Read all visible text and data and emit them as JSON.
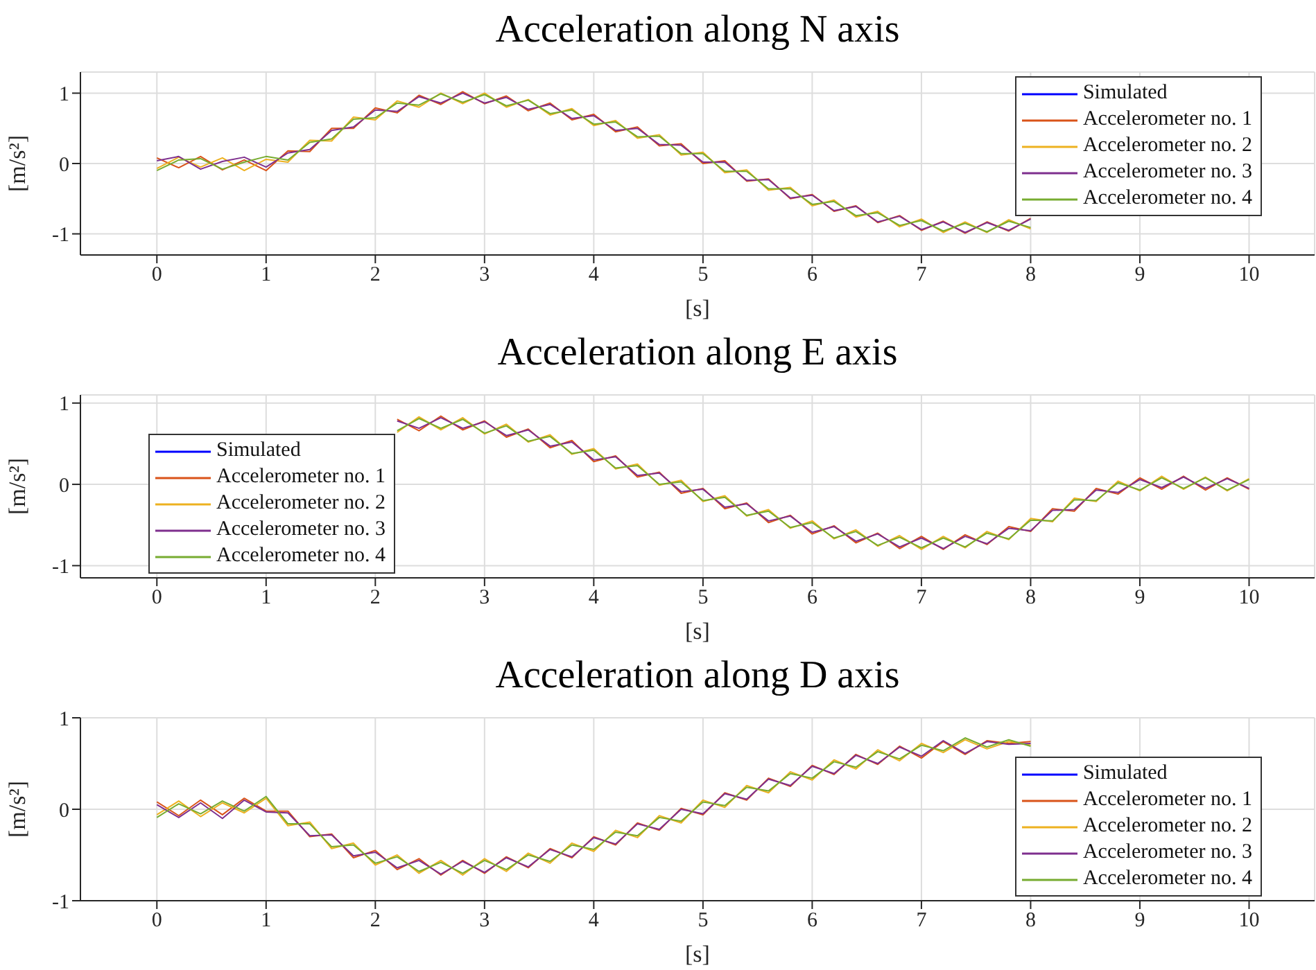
{
  "chart_data": [
    {
      "type": "line",
      "title": "Acceleration along N axis",
      "xlabel": "[s]",
      "ylabel": "[m/s²]",
      "grid": true,
      "legend": "top right",
      "xlim": [
        -0.7,
        10.6
      ],
      "xticks": [
        0,
        1,
        2,
        3,
        4,
        5,
        6,
        7,
        8,
        9,
        10
      ],
      "ylim": [
        -1.3,
        1.3
      ],
      "yticks": [
        -1,
        0,
        1
      ],
      "series": [
        {
          "name": "Simulated",
          "color": "#0000ff"
        },
        {
          "name": "Accelerometer no. 1",
          "color": "#d95319",
          "x": [
            0,
            0.2,
            0.4,
            0.6,
            0.8,
            1,
            1.2,
            1.4,
            1.6,
            1.8,
            2,
            2.2,
            2.4,
            2.6,
            2.8,
            3,
            3.2,
            3.4,
            3.6,
            3.8,
            4,
            4.2,
            4.4,
            4.6,
            4.8,
            5,
            5.2,
            5.4,
            5.6,
            5.8,
            6,
            6.2,
            6.4,
            6.6,
            6.8,
            7,
            7.2,
            7.4,
            7.6,
            7.8,
            8
          ],
          "values": [
            0.08,
            -0.06,
            0.1,
            -0.09,
            0.05,
            -0.1,
            0.18,
            0.17,
            0.5,
            0.5,
            0.79,
            0.72,
            0.97,
            0.84,
            1.02,
            0.85,
            0.96,
            0.75,
            0.86,
            0.62,
            0.7,
            0.45,
            0.52,
            0.25,
            0.28,
            0,
            0.04,
            -0.25,
            -0.22,
            -0.5,
            -0.44,
            -0.68,
            -0.6,
            -0.84,
            -0.74,
            -0.95,
            -0.82,
            -0.99,
            -0.83,
            -0.96,
            -0.78
          ]
        },
        {
          "name": "Accelerometer no. 2",
          "color": "#edb120",
          "x": [
            0,
            0.2,
            0.4,
            0.6,
            0.8,
            1,
            1.2,
            1.4,
            1.6,
            1.8,
            2,
            2.2,
            2.4,
            2.6,
            2.8,
            3,
            3.2,
            3.4,
            3.6,
            3.8,
            4,
            4.2,
            4.4,
            4.6,
            4.8,
            5,
            5.2,
            5.4,
            5.6,
            5.8,
            6,
            6.2,
            6.4,
            6.6,
            6.8,
            7,
            7.2,
            7.4,
            7.6,
            7.8,
            8
          ],
          "values": [
            -0.07,
            0.09,
            -0.05,
            0.08,
            -0.1,
            0.06,
            0.02,
            0.33,
            0.32,
            0.66,
            0.62,
            0.89,
            0.8,
            1.0,
            0.85,
            1.0,
            0.8,
            0.91,
            0.69,
            0.78,
            0.54,
            0.61,
            0.36,
            0.41,
            0.12,
            0.16,
            -0.13,
            -0.09,
            -0.38,
            -0.34,
            -0.6,
            -0.52,
            -0.76,
            -0.68,
            -0.9,
            -0.79,
            -0.98,
            -0.83,
            -0.98,
            -0.8,
            -0.93
          ]
        },
        {
          "name": "Accelerometer no. 3",
          "color": "#7e2f8e",
          "x": [
            0,
            0.2,
            0.4,
            0.6,
            0.8,
            1,
            1.2,
            1.4,
            1.6,
            1.8,
            2,
            2.2,
            2.4,
            2.6,
            2.8,
            3,
            3.2,
            3.4,
            3.6,
            3.8,
            4,
            4.2,
            4.4,
            4.6,
            4.8,
            5,
            5.2,
            5.4,
            5.6,
            5.8,
            6,
            6.2,
            6.4,
            6.6,
            6.8,
            7,
            7.2,
            7.4,
            7.6,
            7.8,
            8
          ],
          "values": [
            0.04,
            0.1,
            -0.08,
            0.03,
            0.09,
            -0.05,
            0.15,
            0.2,
            0.47,
            0.52,
            0.76,
            0.74,
            0.95,
            0.86,
            1.0,
            0.86,
            0.94,
            0.77,
            0.84,
            0.64,
            0.68,
            0.47,
            0.5,
            0.27,
            0.26,
            0.02,
            0.02,
            -0.24,
            -0.23,
            -0.49,
            -0.45,
            -0.67,
            -0.61,
            -0.83,
            -0.75,
            -0.94,
            -0.83,
            -0.98,
            -0.84,
            -0.95,
            -0.79
          ]
        },
        {
          "name": "Accelerometer no. 4",
          "color": "#77ac30",
          "x": [
            0,
            0.2,
            0.4,
            0.6,
            0.8,
            1,
            1.2,
            1.4,
            1.6,
            1.8,
            2,
            2.2,
            2.4,
            2.6,
            2.8,
            3,
            3.2,
            3.4,
            3.6,
            3.8,
            4,
            4.2,
            4.4,
            4.6,
            4.8,
            5,
            5.2,
            5.4,
            5.6,
            5.8,
            6,
            6.2,
            6.4,
            6.6,
            6.8,
            7,
            7.2,
            7.4,
            7.6,
            7.8,
            8
          ],
          "values": [
            -0.1,
            0.05,
            0.07,
            -0.08,
            0.02,
            0.1,
            0.05,
            0.3,
            0.35,
            0.63,
            0.65,
            0.86,
            0.83,
            0.99,
            0.87,
            0.98,
            0.82,
            0.9,
            0.71,
            0.76,
            0.56,
            0.59,
            0.38,
            0.39,
            0.14,
            0.14,
            -0.11,
            -0.11,
            -0.36,
            -0.36,
            -0.58,
            -0.54,
            -0.74,
            -0.7,
            -0.88,
            -0.81,
            -0.96,
            -0.85,
            -0.97,
            -0.82,
            -0.91
          ]
        }
      ]
    },
    {
      "type": "line",
      "title": "Acceleration along E axis",
      "xlabel": "[s]",
      "ylabel": "[m/s²]",
      "grid": true,
      "legend": "bottom left",
      "xlim": [
        -0.7,
        10.6
      ],
      "xticks": [
        0,
        1,
        2,
        3,
        4,
        5,
        6,
        7,
        8,
        9,
        10
      ],
      "ylim": [
        -1.15,
        1.1
      ],
      "yticks": [
        -1,
        0,
        1
      ],
      "series": [
        {
          "name": "Simulated",
          "color": "#0000ff"
        },
        {
          "name": "Accelerometer no. 1",
          "color": "#d95319",
          "x": [
            2.2,
            2.4,
            2.6,
            2.8,
            3,
            3.2,
            3.4,
            3.6,
            3.8,
            4,
            4.2,
            4.4,
            4.6,
            4.8,
            5,
            5.2,
            5.4,
            5.6,
            5.8,
            6,
            6.2,
            6.4,
            6.6,
            6.8,
            7,
            7.2,
            7.4,
            7.6,
            7.8,
            8,
            8.2,
            8.4,
            8.6,
            8.8,
            9,
            9.2,
            9.4,
            9.6,
            9.8,
            10
          ],
          "values": [
            0.8,
            0.66,
            0.84,
            0.67,
            0.78,
            0.58,
            0.68,
            0.45,
            0.54,
            0.28,
            0.35,
            0.09,
            0.15,
            -0.11,
            -0.05,
            -0.3,
            -0.23,
            -0.47,
            -0.38,
            -0.61,
            -0.51,
            -0.72,
            -0.6,
            -0.79,
            -0.64,
            -0.8,
            -0.62,
            -0.74,
            -0.52,
            -0.58,
            -0.3,
            -0.33,
            -0.05,
            -0.12,
            0.08,
            -0.06,
            0.1,
            -0.07,
            0.08,
            -0.06
          ]
        },
        {
          "name": "Accelerometer no. 2",
          "color": "#edb120",
          "x": [
            2.2,
            2.4,
            2.6,
            2.8,
            3,
            3.2,
            3.4,
            3.6,
            3.8,
            4,
            4.2,
            4.4,
            4.6,
            4.8,
            5,
            5.2,
            5.4,
            5.6,
            5.8,
            6,
            6.2,
            6.4,
            6.6,
            6.8,
            7,
            7.2,
            7.4,
            7.6,
            7.8,
            8,
            8.2,
            8.4,
            8.6,
            8.8,
            9,
            9.2,
            9.4,
            9.6,
            9.8,
            10
          ],
          "values": [
            0.64,
            0.83,
            0.67,
            0.82,
            0.62,
            0.74,
            0.52,
            0.61,
            0.37,
            0.44,
            0.19,
            0.25,
            -0.01,
            0.05,
            -0.21,
            -0.14,
            -0.39,
            -0.31,
            -0.54,
            -0.45,
            -0.67,
            -0.56,
            -0.76,
            -0.63,
            -0.8,
            -0.64,
            -0.78,
            -0.58,
            -0.68,
            -0.42,
            -0.46,
            -0.17,
            -0.21,
            0.04,
            -0.08,
            0.1,
            -0.06,
            0.09,
            -0.08,
            0.07
          ]
        },
        {
          "name": "Accelerometer no. 3",
          "color": "#7e2f8e",
          "x": [
            2.2,
            2.4,
            2.6,
            2.8,
            3,
            3.2,
            3.4,
            3.6,
            3.8,
            4,
            4.2,
            4.4,
            4.6,
            4.8,
            5,
            5.2,
            5.4,
            5.6,
            5.8,
            6,
            6.2,
            6.4,
            6.6,
            6.8,
            7,
            7.2,
            7.4,
            7.6,
            7.8,
            8,
            8.2,
            8.4,
            8.6,
            8.8,
            9,
            9.2,
            9.4,
            9.6,
            9.8,
            10
          ],
          "values": [
            0.78,
            0.69,
            0.82,
            0.69,
            0.77,
            0.6,
            0.67,
            0.47,
            0.52,
            0.3,
            0.34,
            0.11,
            0.14,
            -0.09,
            -0.06,
            -0.28,
            -0.24,
            -0.45,
            -0.39,
            -0.59,
            -0.52,
            -0.7,
            -0.61,
            -0.77,
            -0.66,
            -0.79,
            -0.64,
            -0.73,
            -0.54,
            -0.57,
            -0.32,
            -0.31,
            -0.07,
            -0.1,
            0.06,
            -0.04,
            0.09,
            -0.05,
            0.07,
            -0.05
          ]
        },
        {
          "name": "Accelerometer no. 4",
          "color": "#77ac30",
          "x": [
            2.2,
            2.4,
            2.6,
            2.8,
            3,
            3.2,
            3.4,
            3.6,
            3.8,
            4,
            4.2,
            4.4,
            4.6,
            4.8,
            5,
            5.2,
            5.4,
            5.6,
            5.8,
            6,
            6.2,
            6.4,
            6.6,
            6.8,
            7,
            7.2,
            7.4,
            7.6,
            7.8,
            8,
            8.2,
            8.4,
            8.6,
            8.8,
            9,
            9.2,
            9.4,
            9.6,
            9.8,
            10
          ],
          "values": [
            0.66,
            0.81,
            0.69,
            0.8,
            0.63,
            0.72,
            0.53,
            0.59,
            0.38,
            0.42,
            0.2,
            0.23,
            0,
            0.03,
            -0.2,
            -0.16,
            -0.38,
            -0.33,
            -0.53,
            -0.47,
            -0.66,
            -0.58,
            -0.75,
            -0.65,
            -0.78,
            -0.66,
            -0.77,
            -0.6,
            -0.67,
            -0.44,
            -0.45,
            -0.19,
            -0.2,
            0.02,
            -0.07,
            0.08,
            -0.05,
            0.08,
            -0.07,
            0.06
          ]
        }
      ]
    },
    {
      "type": "line",
      "title": "Acceleration along D axis",
      "xlabel": "[s]",
      "ylabel": "[m/s²]",
      "grid": true,
      "legend": "bottom right",
      "xlim": [
        -0.7,
        10.6
      ],
      "xticks": [
        0,
        1,
        2,
        3,
        4,
        5,
        6,
        7,
        8,
        9,
        10
      ],
      "ylim": [
        -1,
        1
      ],
      "yticks": [
        -1,
        0,
        1
      ],
      "series": [
        {
          "name": "Simulated",
          "color": "#0000ff"
        },
        {
          "name": "Accelerometer no. 1",
          "color": "#d95319",
          "x": [
            0,
            0.2,
            0.4,
            0.6,
            0.8,
            1,
            1.2,
            1.4,
            1.6,
            1.8,
            2,
            2.2,
            2.4,
            2.6,
            2.8,
            3,
            3.2,
            3.4,
            3.6,
            3.8,
            4,
            4.2,
            4.4,
            4.6,
            4.8,
            5,
            5.2,
            5.4,
            5.6,
            5.8,
            6,
            6.2,
            6.4,
            6.6,
            6.8,
            7,
            7.2,
            7.4,
            7.6,
            7.8,
            8
          ],
          "values": [
            0.08,
            -0.07,
            0.1,
            -0.06,
            0.12,
            -0.02,
            -0.02,
            -0.3,
            -0.27,
            -0.53,
            -0.45,
            -0.66,
            -0.54,
            -0.72,
            -0.56,
            -0.7,
            -0.52,
            -0.64,
            -0.43,
            -0.53,
            -0.3,
            -0.39,
            -0.15,
            -0.23,
            0.01,
            -0.06,
            0.18,
            0.1,
            0.34,
            0.25,
            0.48,
            0.38,
            0.6,
            0.49,
            0.69,
            0.56,
            0.74,
            0.6,
            0.75,
            0.72,
            0.74
          ]
        },
        {
          "name": "Accelerometer no. 2",
          "color": "#edb120",
          "x": [
            0,
            0.2,
            0.4,
            0.6,
            0.8,
            1,
            1.2,
            1.4,
            1.6,
            1.8,
            2,
            2.2,
            2.4,
            2.6,
            2.8,
            3,
            3.2,
            3.4,
            3.6,
            3.8,
            4,
            4.2,
            4.4,
            4.6,
            4.8,
            5,
            5.2,
            5.4,
            5.6,
            5.8,
            6,
            6.2,
            6.4,
            6.6,
            6.8,
            7,
            7.2,
            7.4,
            7.6,
            7.8,
            8
          ],
          "values": [
            -0.06,
            0.09,
            -0.08,
            0.07,
            -0.04,
            0.12,
            -0.18,
            -0.14,
            -0.43,
            -0.37,
            -0.61,
            -0.5,
            -0.7,
            -0.56,
            -0.72,
            -0.54,
            -0.68,
            -0.48,
            -0.59,
            -0.37,
            -0.46,
            -0.23,
            -0.31,
            -0.07,
            -0.15,
            0.1,
            0.02,
            0.26,
            0.18,
            0.41,
            0.32,
            0.54,
            0.44,
            0.65,
            0.53,
            0.72,
            0.62,
            0.76,
            0.66,
            0.74,
            0.7
          ]
        },
        {
          "name": "Accelerometer no. 3",
          "color": "#7e2f8e",
          "x": [
            0,
            0.2,
            0.4,
            0.6,
            0.8,
            1,
            1.2,
            1.4,
            1.6,
            1.8,
            2,
            2.2,
            2.4,
            2.6,
            2.8,
            3,
            3.2,
            3.4,
            3.6,
            3.8,
            4,
            4.2,
            4.4,
            4.6,
            4.8,
            5,
            5.2,
            5.4,
            5.6,
            5.8,
            6,
            6.2,
            6.4,
            6.6,
            6.8,
            7,
            7.2,
            7.4,
            7.6,
            7.8,
            8
          ],
          "values": [
            0.05,
            -0.09,
            0.07,
            -0.1,
            0.1,
            -0.03,
            -0.04,
            -0.29,
            -0.28,
            -0.51,
            -0.47,
            -0.64,
            -0.56,
            -0.71,
            -0.57,
            -0.69,
            -0.53,
            -0.63,
            -0.44,
            -0.52,
            -0.31,
            -0.38,
            -0.16,
            -0.22,
            0,
            -0.05,
            0.17,
            0.11,
            0.33,
            0.26,
            0.47,
            0.39,
            0.59,
            0.5,
            0.68,
            0.58,
            0.75,
            0.61,
            0.74,
            0.71,
            0.72
          ]
        },
        {
          "name": "Accelerometer no. 4",
          "color": "#77ac30",
          "x": [
            0,
            0.2,
            0.4,
            0.6,
            0.8,
            1,
            1.2,
            1.4,
            1.6,
            1.8,
            2,
            2.2,
            2.4,
            2.6,
            2.8,
            3,
            3.2,
            3.4,
            3.6,
            3.8,
            4,
            4.2,
            4.4,
            4.6,
            4.8,
            5,
            5.2,
            5.4,
            5.6,
            5.8,
            6,
            6.2,
            6.4,
            6.6,
            6.8,
            7,
            7.2,
            7.4,
            7.6,
            7.8,
            8
          ],
          "values": [
            -0.09,
            0.06,
            -0.05,
            0.09,
            -0.02,
            0.14,
            -0.16,
            -0.16,
            -0.41,
            -0.39,
            -0.59,
            -0.52,
            -0.68,
            -0.58,
            -0.7,
            -0.56,
            -0.66,
            -0.5,
            -0.57,
            -0.39,
            -0.44,
            -0.25,
            -0.29,
            -0.09,
            -0.13,
            0.08,
            0.04,
            0.24,
            0.2,
            0.39,
            0.34,
            0.52,
            0.46,
            0.63,
            0.55,
            0.7,
            0.64,
            0.78,
            0.68,
            0.76,
            0.69
          ]
        }
      ]
    }
  ]
}
